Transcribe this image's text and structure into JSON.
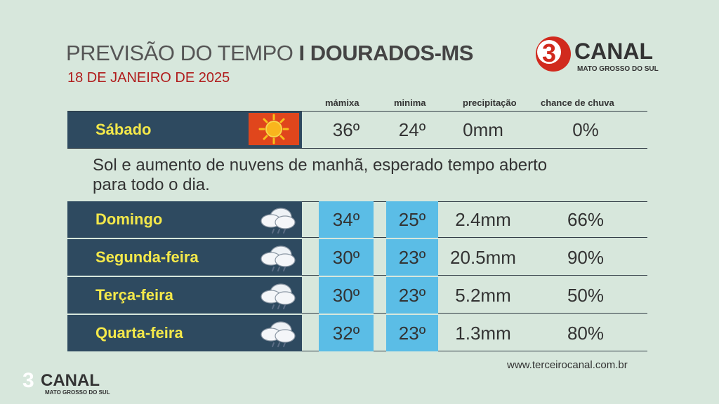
{
  "header": {
    "title_prefix": "PREVISÃO DO TEMPO",
    "title_location": "I DOURADOS-MS",
    "date": "18 DE JANEIRO DE 2025"
  },
  "brand": {
    "logo_number": "3",
    "logo_name": "CANAL",
    "logo_tagline": "MATO GROSSO DO SUL",
    "website": "www.terceirocanal.com.br"
  },
  "columns": {
    "max": "mámixa",
    "min": "minima",
    "precip": "precipitação",
    "chance": "chance de chuva"
  },
  "today": {
    "day": "Sábado",
    "icon": "sun-icon",
    "max": "36º",
    "min": "24º",
    "precip": "0mm",
    "chance": "0%",
    "description": "Sol e aumento de nuvens de manhã, esperado tempo aberto para todo o dia."
  },
  "forecast": [
    {
      "day": "Domingo",
      "icon": "rain-cloud-icon",
      "max": "34º",
      "min": "25º",
      "precip": "2.4mm",
      "chance": "66%"
    },
    {
      "day": "Segunda-feira",
      "icon": "rain-cloud-icon",
      "max": "30º",
      "min": "23º",
      "precip": "20.5mm",
      "chance": "90%"
    },
    {
      "day": "Terça-feira",
      "icon": "rain-cloud-icon",
      "max": "30º",
      "min": "23º",
      "precip": "5.2mm",
      "chance": "50%"
    },
    {
      "day": "Quarta-feira",
      "icon": "rain-cloud-icon",
      "max": "32º",
      "min": "23º",
      "precip": "1.3mm",
      "chance": "80%"
    }
  ],
  "colors": {
    "background": "#d7e7dc",
    "day_band": "#2e4a60",
    "day_text": "#f4e84a",
    "highlight_cell": "#5bbde6",
    "date_red": "#b01c1c",
    "brand_red": "#d12a1e"
  }
}
